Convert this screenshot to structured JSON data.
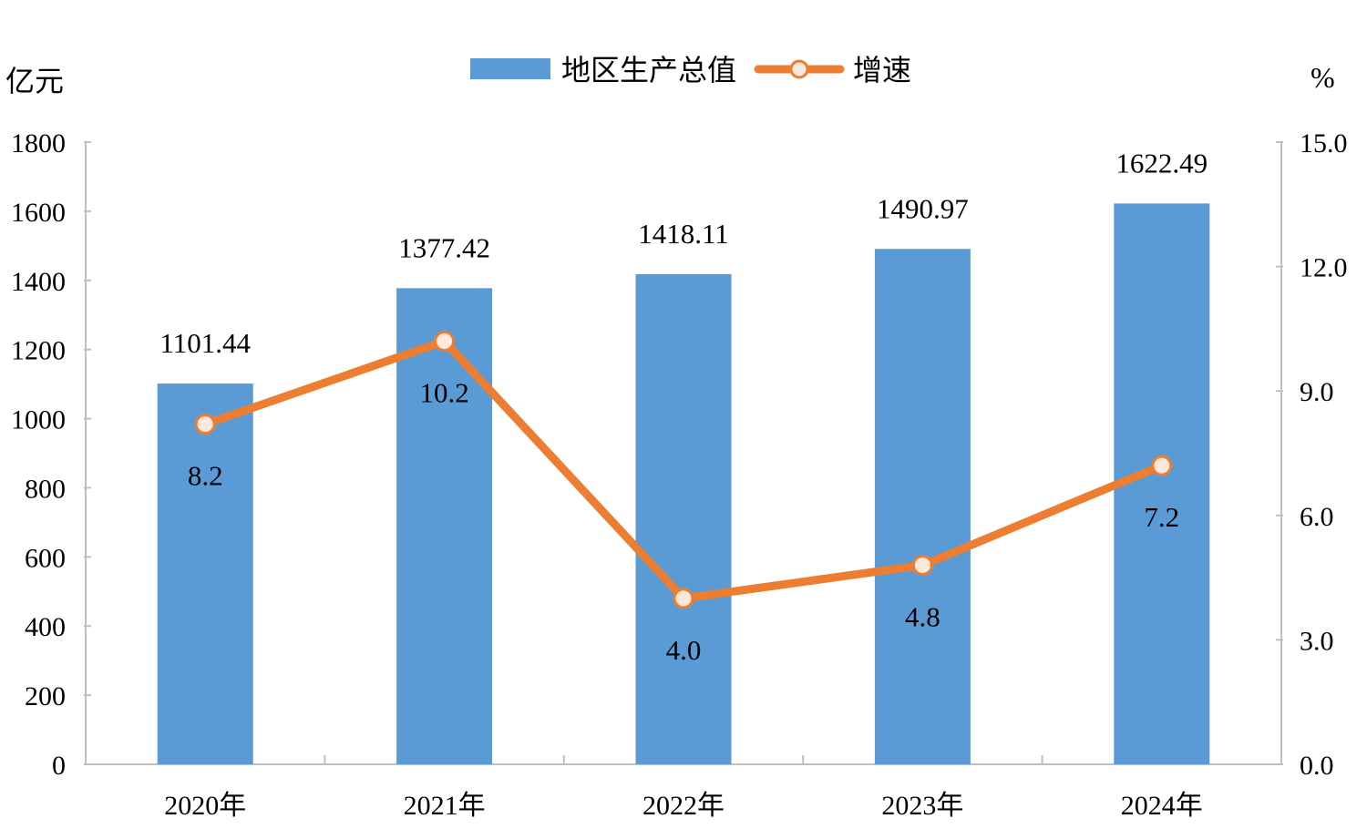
{
  "chart_data": {
    "type": "bar",
    "categories": [
      "2020年",
      "2021年",
      "2022年",
      "2023年",
      "2024年"
    ],
    "series": [
      {
        "name": "地区生产总值",
        "type": "bar",
        "axis": "left",
        "values": [
          1101.44,
          1377.42,
          1418.11,
          1490.97,
          1622.49
        ],
        "labels": [
          "1101.44",
          "1377.42",
          "1418.11",
          "1490.97",
          "1622.49"
        ],
        "color": "#5B9BD5"
      },
      {
        "name": "增速",
        "type": "line",
        "axis": "right",
        "values": [
          8.2,
          10.2,
          4.0,
          4.8,
          7.2
        ],
        "labels": [
          "8.2",
          "10.2",
          "4.0",
          "4.8",
          "7.2"
        ],
        "color": "#ED7D31"
      }
    ],
    "left_axis": {
      "unit": "亿元",
      "ylim": [
        0,
        1800
      ],
      "ticks": [
        "0",
        "200",
        "400",
        "600",
        "800",
        "1000",
        "1200",
        "1400",
        "1600",
        "1800"
      ]
    },
    "right_axis": {
      "unit": "%",
      "ylim": [
        0,
        15
      ],
      "ticks": [
        "0.0",
        "3.0",
        "6.0",
        "9.0",
        "12.0",
        "15.0"
      ]
    },
    "legend": "top-center",
    "grid": false
  }
}
